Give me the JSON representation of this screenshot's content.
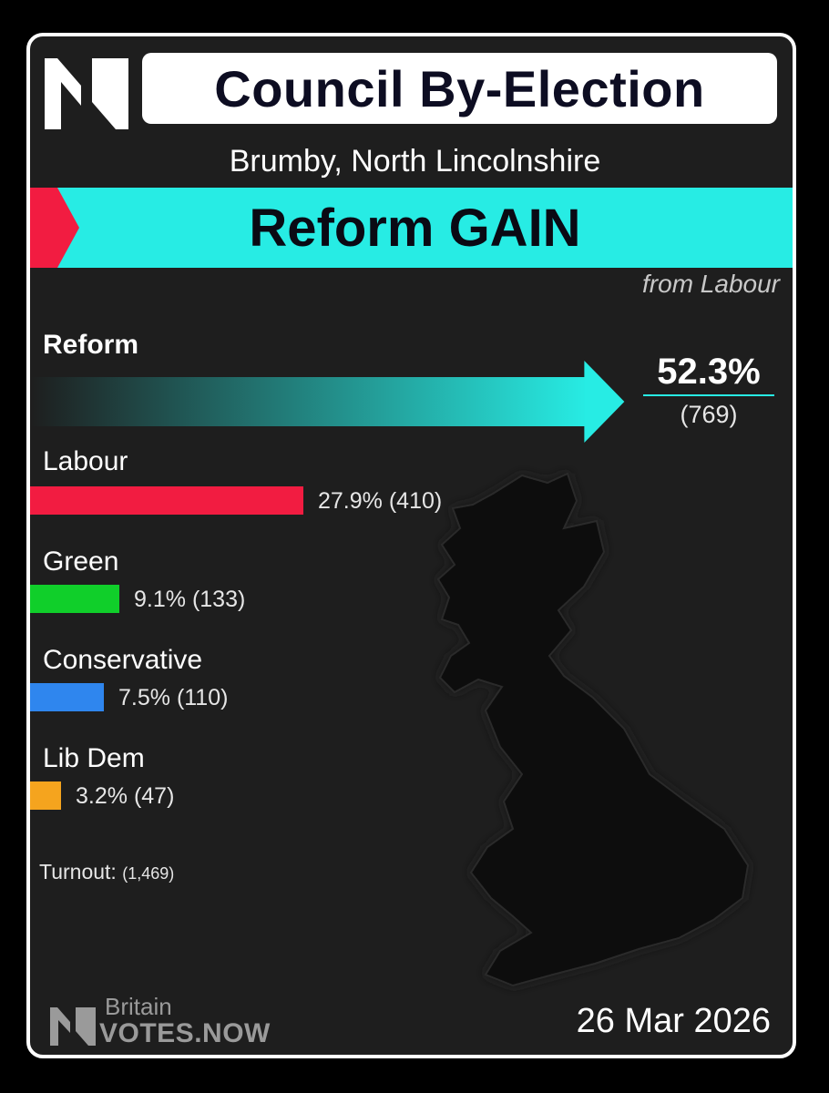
{
  "header": {
    "title": "Council By-Election",
    "subtitle": "Brumby, North Lincolnshire"
  },
  "result": {
    "headline": "Reform GAIN",
    "from_text": "from Labour"
  },
  "chart_data": {
    "type": "bar",
    "orientation": "horizontal",
    "categories": [
      "Reform",
      "Labour",
      "Green",
      "Conservative",
      "Lib Dem"
    ],
    "values": [
      52.3,
      27.9,
      9.1,
      7.5,
      3.2
    ],
    "votes": [
      769,
      410,
      133,
      110,
      47
    ],
    "value_labels": [
      "52.3%",
      "27.9%",
      "9.1%",
      "7.5%",
      "3.2%"
    ],
    "vote_labels": [
      "(769)",
      "(410)",
      "(133)",
      "(110)",
      "(47)"
    ],
    "colors": [
      "#27ece4",
      "#f21c41",
      "#10cf2a",
      "#2f86ee",
      "#f5a41e"
    ],
    "unit": "%"
  },
  "turnout": {
    "label": "Turnout:",
    "value": "(1,469)"
  },
  "footer": {
    "brand_top": "Britain",
    "brand_bottom": "VOTES.NOW",
    "date": "26 Mar 2026"
  },
  "colors": {
    "background": "#1e1e1e",
    "accent": "#27ece4",
    "alert": "#f21c41"
  },
  "icons": {
    "top_logo": "n-logo-icon",
    "footer_logo": "n-logo-icon",
    "map": "uk-map-silhouette"
  }
}
